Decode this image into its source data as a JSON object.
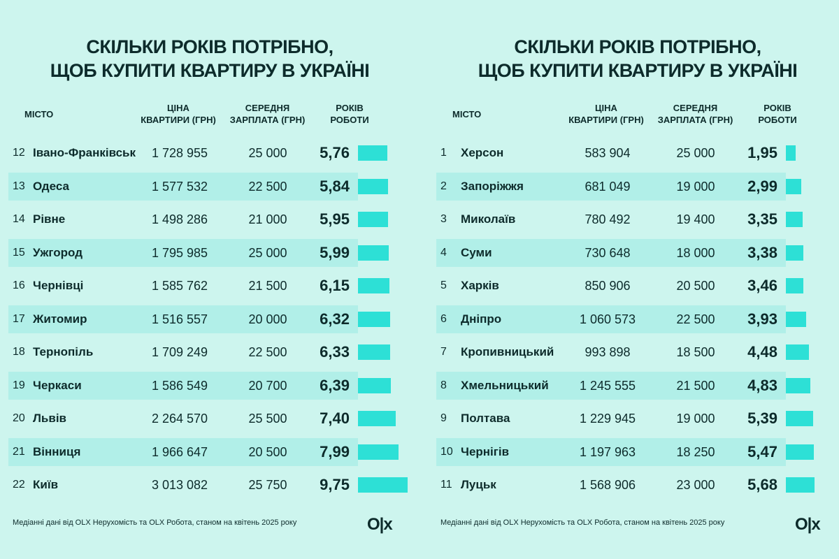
{
  "title_line1": "СКІЛЬКИ РОКІВ ПОТРІБНО,",
  "title_line2": "ЩОБ КУПИТИ КВАРТИРУ В УКРАЇНІ",
  "headers": {
    "city": "МІСТО",
    "price_1": "ЦІНА",
    "price_2": "КВАРТИРИ (ГРН)",
    "salary_1": "СЕРЕДНЯ",
    "salary_2": "ЗАРПЛАТА (ГРН)",
    "years_1": "РОКІВ",
    "years_2": "РОБОТИ"
  },
  "footer": "Медіанні дані від OLX Нерухомість та OLX Робота, станом на квітень 2025 року",
  "logo": "OLX",
  "colors": {
    "background": "#cdf5ee",
    "stripe": "#b1efe8",
    "bar": "#2de0d6",
    "text": "#0d2b2b"
  },
  "chart_data": {
    "type": "table",
    "columns": [
      "rank",
      "city",
      "price_uah",
      "salary_uah",
      "years"
    ],
    "bar_column": "years",
    "panels": [
      {
        "rows": [
          {
            "rank": "12",
            "city": "Івано-Франківськ",
            "price": "1 728 955",
            "salary": "25 000",
            "years": "5,76",
            "value": 5.76
          },
          {
            "rank": "13",
            "city": "Одеса",
            "price": "1 577 532",
            "salary": "22 500",
            "years": "5,84",
            "value": 5.84
          },
          {
            "rank": "14",
            "city": "Рівне",
            "price": "1 498 286",
            "salary": "21 000",
            "years": "5,95",
            "value": 5.95
          },
          {
            "rank": "15",
            "city": "Ужгород",
            "price": "1 795 985",
            "salary": "25 000",
            "years": "5,99",
            "value": 5.99
          },
          {
            "rank": "16",
            "city": "Чернівці",
            "price": "1 585 762",
            "salary": "21 500",
            "years": "6,15",
            "value": 6.15
          },
          {
            "rank": "17",
            "city": "Житомир",
            "price": "1 516 557",
            "salary": "20 000",
            "years": "6,32",
            "value": 6.32
          },
          {
            "rank": "18",
            "city": "Тернопіль",
            "price": "1 709 249",
            "salary": "22 500",
            "years": "6,33",
            "value": 6.33
          },
          {
            "rank": "19",
            "city": "Черкаси",
            "price": "1 586 549",
            "salary": "20 700",
            "years": "6,39",
            "value": 6.39
          },
          {
            "rank": "20",
            "city": "Львів",
            "price": "2 264 570",
            "salary": "25 500",
            "years": "7,40",
            "value": 7.4
          },
          {
            "rank": "21",
            "city": "Вінниця",
            "price": "1 966 647",
            "salary": "20 500",
            "years": "7,99",
            "value": 7.99
          },
          {
            "rank": "22",
            "city": "Київ",
            "price": "3 013 082",
            "salary": "25 750",
            "years": "9,75",
            "value": 9.75
          }
        ]
      },
      {
        "rows": [
          {
            "rank": "1",
            "city": "Херсон",
            "price": "583 904",
            "salary": "25 000",
            "years": "1,95",
            "value": 1.95
          },
          {
            "rank": "2",
            "city": "Запоріжжя",
            "price": "681 049",
            "salary": "19 000",
            "years": "2,99",
            "value": 2.99
          },
          {
            "rank": "3",
            "city": "Миколаїв",
            "price": "780 492",
            "salary": "19 400",
            "years": "3,35",
            "value": 3.35
          },
          {
            "rank": "4",
            "city": "Суми",
            "price": "730 648",
            "salary": "18 000",
            "years": "3,38",
            "value": 3.38
          },
          {
            "rank": "5",
            "city": "Харків",
            "price": "850 906",
            "salary": "20 500",
            "years": "3,46",
            "value": 3.46
          },
          {
            "rank": "6",
            "city": "Дніпро",
            "price": "1 060 573",
            "salary": "22 500",
            "years": "3,93",
            "value": 3.93
          },
          {
            "rank": "7",
            "city": "Кропивницький",
            "price": "993 898",
            "salary": "18 500",
            "years": "4,48",
            "value": 4.48
          },
          {
            "rank": "8",
            "city": "Хмельницький",
            "price": "1 245 555",
            "salary": "21 500",
            "years": "4,83",
            "value": 4.83
          },
          {
            "rank": "9",
            "city": "Полтава",
            "price": "1 229 945",
            "salary": "19 000",
            "years": "5,39",
            "value": 5.39
          },
          {
            "rank": "10",
            "city": "Чернігів",
            "price": "1 197 963",
            "salary": "18 250",
            "years": "5,47",
            "value": 5.47
          },
          {
            "rank": "11",
            "city": "Луцьк",
            "price": "1 568 906",
            "salary": "23 000",
            "years": "5,68",
            "value": 5.68
          }
        ]
      }
    ]
  }
}
